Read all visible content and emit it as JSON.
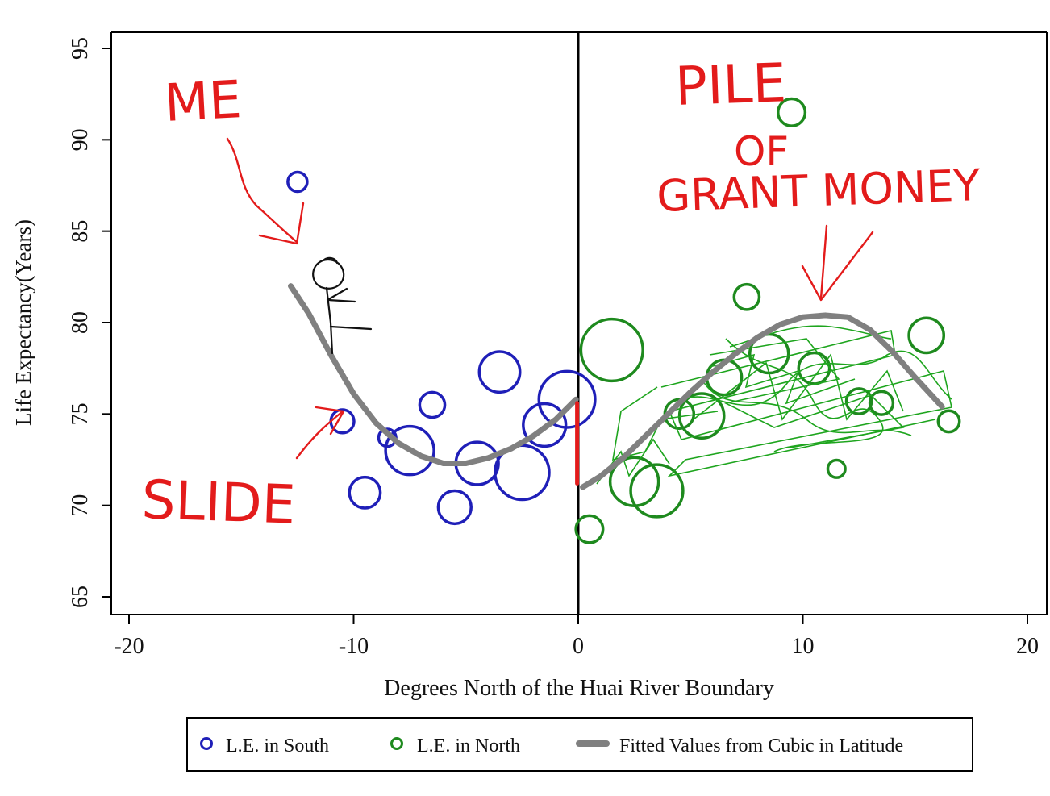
{
  "chart_data": {
    "type": "scatter",
    "xlabel": "Degrees North of the Huai River Boundary",
    "ylabel": "Life Expectancy(Years)",
    "xlim": [
      -20,
      20
    ],
    "ylim": [
      64,
      96
    ],
    "x_ticks": [
      -20,
      -10,
      0,
      10,
      20
    ],
    "y_ticks": [
      65,
      70,
      75,
      80,
      85,
      90,
      95
    ],
    "grid": false,
    "legend_position": "bottom",
    "cutoff_line_x": 0,
    "colors": {
      "south": "#1f1fb8",
      "north": "#1e8a1e",
      "fit": "#808080",
      "annotation": "#e31b1b",
      "discontinuity": "#e31b1b"
    },
    "series": [
      {
        "name": "L.E. in South",
        "points": [
          {
            "x": -12.5,
            "y": 87.7,
            "size": 1.0
          },
          {
            "x": -10.5,
            "y": 74.6,
            "size": 1.2
          },
          {
            "x": -9.5,
            "y": 70.7,
            "size": 1.6
          },
          {
            "x": -8.5,
            "y": 73.7,
            "size": 0.9
          },
          {
            "x": -7.5,
            "y": 73.0,
            "size": 2.5
          },
          {
            "x": -6.5,
            "y": 75.5,
            "size": 1.3
          },
          {
            "x": -5.5,
            "y": 69.9,
            "size": 1.7
          },
          {
            "x": -4.5,
            "y": 72.3,
            "size": 2.2
          },
          {
            "x": -3.5,
            "y": 77.3,
            "size": 2.1
          },
          {
            "x": -2.5,
            "y": 71.8,
            "size": 2.8
          },
          {
            "x": -1.5,
            "y": 74.4,
            "size": 2.2
          },
          {
            "x": -0.5,
            "y": 75.8,
            "size": 2.9
          }
        ]
      },
      {
        "name": "L.E. in North",
        "points": [
          {
            "x": 0.5,
            "y": 68.7,
            "size": 1.4
          },
          {
            "x": 1.5,
            "y": 78.5,
            "size": 3.2
          },
          {
            "x": 2.5,
            "y": 71.3,
            "size": 2.5
          },
          {
            "x": 3.5,
            "y": 70.8,
            "size": 2.7
          },
          {
            "x": 4.5,
            "y": 75.0,
            "size": 1.5
          },
          {
            "x": 5.5,
            "y": 74.9,
            "size": 2.3
          },
          {
            "x": 6.5,
            "y": 77.0,
            "size": 1.8
          },
          {
            "x": 7.5,
            "y": 81.4,
            "size": 1.3
          },
          {
            "x": 8.5,
            "y": 78.3,
            "size": 2.0
          },
          {
            "x": 9.5,
            "y": 91.5,
            "size": 1.4
          },
          {
            "x": 10.5,
            "y": 77.5,
            "size": 1.6
          },
          {
            "x": 11.5,
            "y": 72.0,
            "size": 0.9
          },
          {
            "x": 12.5,
            "y": 75.7,
            "size": 1.3
          },
          {
            "x": 13.5,
            "y": 75.6,
            "size": 1.2
          },
          {
            "x": 15.5,
            "y": 79.3,
            "size": 1.8
          },
          {
            "x": 16.5,
            "y": 74.6,
            "size": 1.1
          }
        ]
      }
    ],
    "fits": [
      {
        "name": "Fitted Values from Cubic in Latitude",
        "side": "south",
        "x": [
          -12.8,
          -12,
          -11,
          -10,
          -9,
          -8,
          -7,
          -6,
          -5,
          -4,
          -3,
          -2,
          -1,
          -0.1
        ],
        "y": [
          82.0,
          80.5,
          78.2,
          76.1,
          74.5,
          73.4,
          72.7,
          72.3,
          72.3,
          72.6,
          73.1,
          73.8,
          74.7,
          75.8
        ]
      },
      {
        "name": "Fitted Values from Cubic in Latitude",
        "side": "north",
        "x": [
          0.2,
          1,
          2,
          3,
          4,
          5,
          6,
          7,
          8,
          9,
          10,
          11,
          12,
          13,
          14,
          15,
          16.2
        ],
        "y": [
          71.0,
          71.6,
          72.6,
          73.8,
          75.0,
          76.2,
          77.3,
          78.3,
          79.2,
          79.9,
          80.3,
          80.4,
          80.3,
          79.6,
          78.4,
          77.0,
          75.4
        ]
      }
    ],
    "discontinuity": {
      "x": -0.05,
      "y_from": 75.6,
      "y_to": 71.2
    },
    "legend": [
      {
        "label": "L.E. in South",
        "marker": "circle-blue"
      },
      {
        "label": "L.E. in North",
        "marker": "circle-green"
      },
      {
        "label": "Fitted Values from Cubic in Latitude",
        "marker": "line-gray"
      }
    ],
    "annotations": [
      {
        "text": "ME",
        "color": "#e31b1b"
      },
      {
        "text": "PILE",
        "color": "#e31b1b"
      },
      {
        "text": "OF",
        "color": "#e31b1b"
      },
      {
        "text": "GRANT MONEY",
        "color": "#e31b1b"
      },
      {
        "text": "SLIDE",
        "color": "#e31b1b"
      }
    ],
    "drawings": [
      "stick-figure",
      "scribble-pile",
      "arrow-to-figure",
      "arrow-to-pile",
      "arrow-to-curve"
    ]
  }
}
